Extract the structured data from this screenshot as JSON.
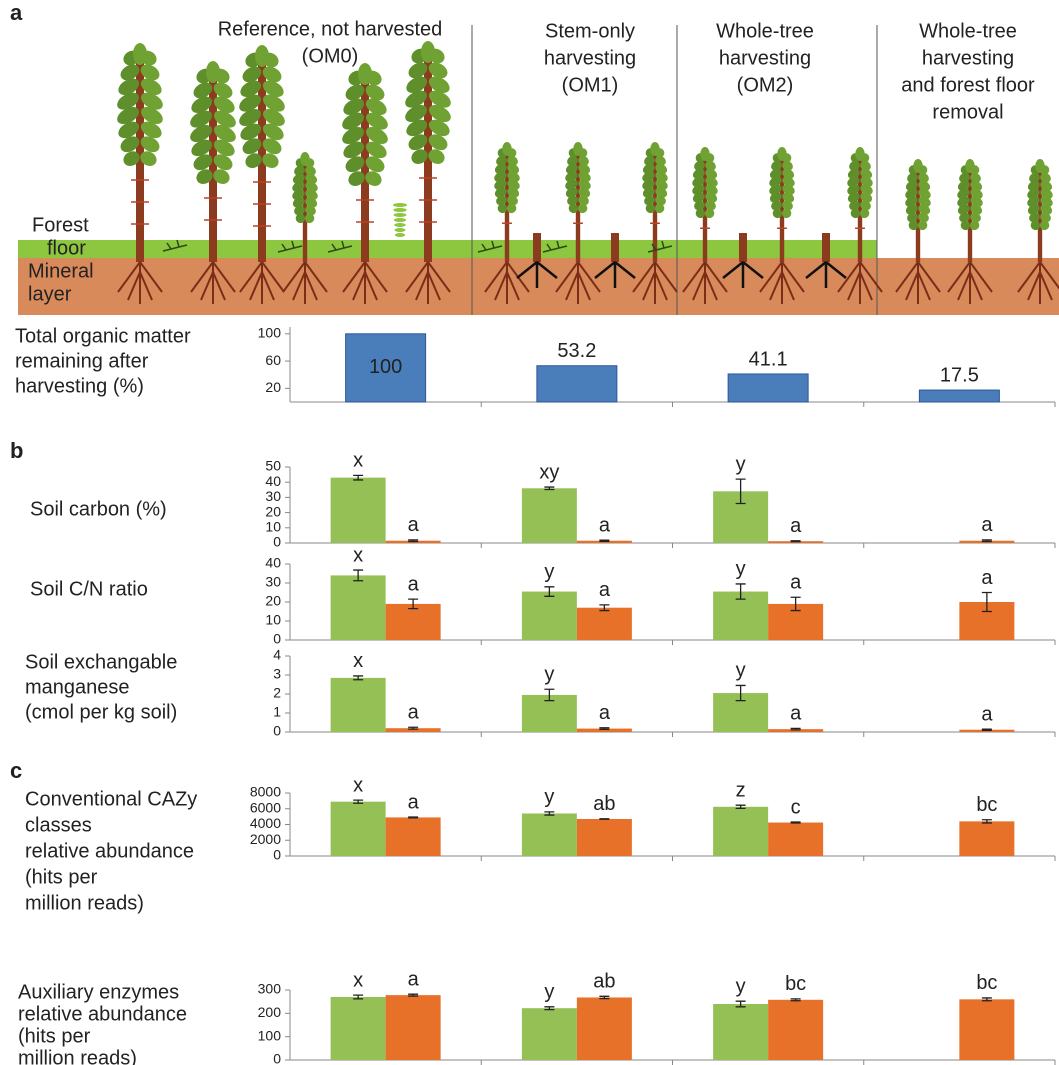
{
  "panel_labels": [
    "a",
    "b",
    "c"
  ],
  "panel_a": {
    "treatments": [
      [
        "Reference, not harvested",
        "(OM0)"
      ],
      [
        "Stem-only",
        "harvesting",
        "(OM1)"
      ],
      [
        "Whole-tree",
        "harvesting",
        "(OM2)"
      ],
      [
        "Whole-tree",
        "harvesting",
        "and forest floor",
        "removal"
      ]
    ],
    "layers": [
      [
        "Forest",
        "floor"
      ],
      [
        "Mineral",
        "layer"
      ]
    ]
  },
  "chart_data": [
    {
      "type": "bar",
      "ylabel": [
        "Total organic matter",
        "remaining after",
        "harvesting (%)"
      ],
      "values": [
        100,
        53.2,
        41.1,
        17.5
      ],
      "color": "#4a7ebb",
      "ylim": [
        0,
        110
      ],
      "yticks": [
        20,
        60,
        100
      ]
    },
    {
      "type": "grouped_bar",
      "ylabel": [
        "Soil carbon (%)"
      ],
      "ylim": [
        0,
        50
      ],
      "yticks": [
        0,
        10,
        20,
        30,
        40,
        50
      ],
      "series": [
        {
          "color": "#94c055",
          "values": [
            43,
            36,
            34,
            null
          ],
          "errors": [
            1.5,
            0.8,
            8,
            null
          ],
          "letters": [
            "x",
            "xy",
            "y",
            null
          ]
        },
        {
          "color": "#e8712a",
          "values": [
            1.5,
            1.5,
            1.2,
            1.5
          ],
          "errors": [
            0.5,
            0.4,
            0.3,
            0.5
          ],
          "letters": [
            "a",
            "a",
            "a",
            "a"
          ]
        }
      ]
    },
    {
      "type": "grouped_bar",
      "ylabel": [
        "Soil C/N ratio"
      ],
      "ylim": [
        0,
        40
      ],
      "yticks": [
        0,
        10,
        20,
        30,
        40
      ],
      "series": [
        {
          "color": "#94c055",
          "values": [
            34,
            25.5,
            25.5,
            null
          ],
          "errors": [
            2.8,
            2.5,
            4,
            null
          ],
          "letters": [
            "x",
            "y",
            "y",
            null
          ]
        },
        {
          "color": "#e8712a",
          "values": [
            19,
            17,
            19,
            20
          ],
          "errors": [
            2.5,
            1.5,
            3.5,
            5
          ],
          "letters": [
            "a",
            "a",
            "a",
            "a"
          ]
        }
      ]
    },
    {
      "type": "grouped_bar",
      "ylabel": [
        "Soil exchangable",
        "manganese",
        "(cmol per kg soil)"
      ],
      "ylim": [
        0,
        4
      ],
      "yticks": [
        0,
        1,
        2,
        3,
        4
      ],
      "series": [
        {
          "color": "#94c055",
          "values": [
            2.85,
            1.95,
            2.05,
            null
          ],
          "errors": [
            0.1,
            0.3,
            0.4,
            null
          ],
          "letters": [
            "x",
            "y",
            "y",
            null
          ]
        },
        {
          "color": "#e8712a",
          "values": [
            0.2,
            0.18,
            0.15,
            0.12
          ],
          "errors": [
            0.05,
            0.04,
            0.04,
            0.03
          ],
          "letters": [
            "a",
            "a",
            "a",
            "a"
          ]
        }
      ]
    },
    {
      "type": "grouped_bar",
      "ylabel": [
        "Conventional CAZy",
        "classes",
        "relative abundance",
        "(hits per",
        "million reads)"
      ],
      "ylim": [
        0,
        8000
      ],
      "yticks": [
        0,
        2000,
        4000,
        6000,
        8000
      ],
      "series": [
        {
          "color": "#94c055",
          "values": [
            6900,
            5400,
            6250,
            null
          ],
          "errors": [
            200,
            200,
            200,
            null
          ],
          "letters": [
            "x",
            "y",
            "z",
            null
          ]
        },
        {
          "color": "#e8712a",
          "values": [
            4900,
            4700,
            4250,
            4400
          ],
          "errors": [
            50,
            30,
            60,
            200
          ],
          "letters": [
            "a",
            "ab",
            "c",
            "bc"
          ]
        }
      ]
    },
    {
      "type": "grouped_bar",
      "ylabel": [
        "Auxiliary enzymes",
        "relative abundance",
        "(hits per",
        "million reads)"
      ],
      "ylim": [
        0,
        300
      ],
      "yticks": [
        0,
        100,
        200,
        300
      ],
      "series": [
        {
          "color": "#94c055",
          "values": [
            270,
            222,
            240,
            null
          ],
          "errors": [
            8,
            6,
            12,
            null
          ],
          "letters": [
            "x",
            "y",
            "y",
            null
          ]
        },
        {
          "color": "#e8712a",
          "values": [
            278,
            268,
            258,
            260
          ],
          "errors": [
            4,
            5,
            4,
            6
          ],
          "letters": [
            "a",
            "ab",
            "bc",
            "bc"
          ]
        }
      ]
    }
  ]
}
